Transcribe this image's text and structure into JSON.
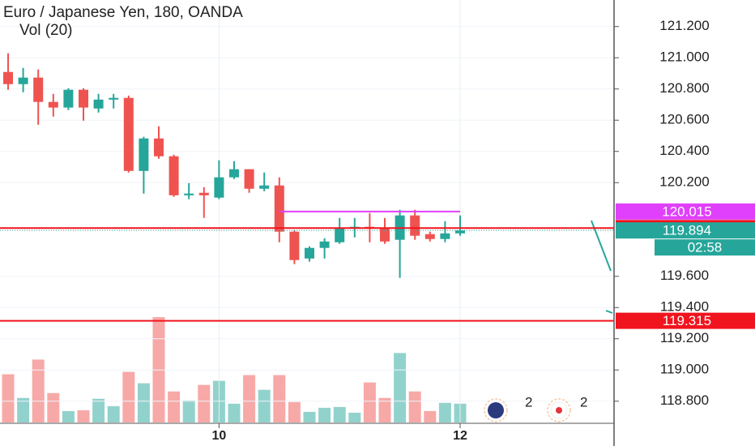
{
  "chart_data": {
    "type": "candlestick",
    "title": "Euro / Japanese Yen, 180, OANDA",
    "subtitle": "Vol (20)",
    "categories": [
      null,
      null,
      null,
      null,
      null,
      null,
      null,
      null,
      null,
      null,
      null,
      null,
      null,
      null,
      "10",
      null,
      null,
      null,
      null,
      null,
      null,
      null,
      null,
      null,
      null,
      null,
      null,
      null,
      null,
      null,
      "12"
    ],
    "open": [
      120.909,
      120.831,
      120.873,
      120.717,
      120.681,
      120.795,
      120.675,
      120.732,
      120.743,
      120.275,
      120.483,
      120.369,
      120.119,
      120.135,
      120.104,
      120.234,
      120.286,
      120.161,
      120.182,
      119.886,
      119.714,
      119.782,
      119.818,
      119.906,
      119.917,
      119.912,
      119.834,
      119.99,
      119.87,
      119.839,
      119.875
    ],
    "high": [
      121.029,
      120.935,
      120.925,
      120.769,
      120.805,
      120.805,
      120.769,
      120.769,
      120.758,
      120.494,
      120.561,
      120.379,
      120.197,
      120.171,
      120.343,
      120.338,
      120.286,
      120.265,
      120.234,
      119.896,
      119.792,
      119.844,
      119.974,
      119.974,
      120.005,
      119.974,
      120.026,
      120.026,
      119.886,
      119.953,
      119.99
    ],
    "low": [
      120.795,
      120.779,
      120.571,
      120.623,
      120.665,
      120.597,
      120.649,
      120.675,
      120.265,
      120.13,
      120.353,
      120.109,
      120.094,
      119.974,
      120.094,
      120.223,
      120.135,
      120.145,
      119.818,
      119.678,
      119.694,
      119.714,
      119.808,
      119.849,
      119.818,
      119.808,
      119.59,
      119.834,
      119.823,
      119.818,
      119.86
    ],
    "close": [
      120.831,
      120.873,
      120.717,
      120.681,
      120.795,
      120.681,
      120.732,
      120.743,
      120.275,
      120.483,
      120.369,
      120.119,
      120.13,
      120.119,
      120.234,
      120.286,
      120.161,
      120.182,
      119.886,
      119.704,
      119.782,
      119.823,
      119.912,
      119.917,
      119.906,
      119.823,
      119.99,
      119.86,
      119.839,
      119.875,
      119.894
    ],
    "volume": [
      59,
      30,
      77,
      36,
      14,
      15,
      29,
      20,
      62,
      48,
      129,
      38,
      27,
      46,
      51,
      23,
      58,
      40,
      58,
      25,
      13,
      18,
      19,
      12,
      49,
      30,
      85,
      38,
      14,
      24,
      23
    ],
    "up_color": "#26a69a",
    "down_color": "#ef5350",
    "ylim": [
      118.66,
      121.37
    ],
    "yticks": [
      {
        "value": 121.2,
        "label": "121.200"
      },
      {
        "value": 121.0,
        "label": "121.000"
      },
      {
        "value": 120.8,
        "label": "120.800"
      },
      {
        "value": 120.6,
        "label": "120.600"
      },
      {
        "value": 120.4,
        "label": "120.400"
      },
      {
        "value": 120.2,
        "label": "120.200"
      },
      {
        "value": 119.6,
        "label": "119.600"
      },
      {
        "value": 119.4,
        "label": "119.400"
      },
      {
        "value": 119.2,
        "label": "119.200"
      },
      {
        "value": 119.0,
        "label": "119.000"
      },
      {
        "value": 118.8,
        "label": "118.800"
      }
    ],
    "grid": true,
    "price_lines": [
      {
        "value": 120.015,
        "color": "#e040fb"
      },
      {
        "value": 119.909,
        "color": "#f0141e"
      },
      {
        "value": 119.894,
        "color": "#26a69a"
      },
      {
        "value": 119.315,
        "color": "#f0141e"
      }
    ],
    "countdown": "02:58",
    "event_counts": [
      2,
      2
    ]
  }
}
